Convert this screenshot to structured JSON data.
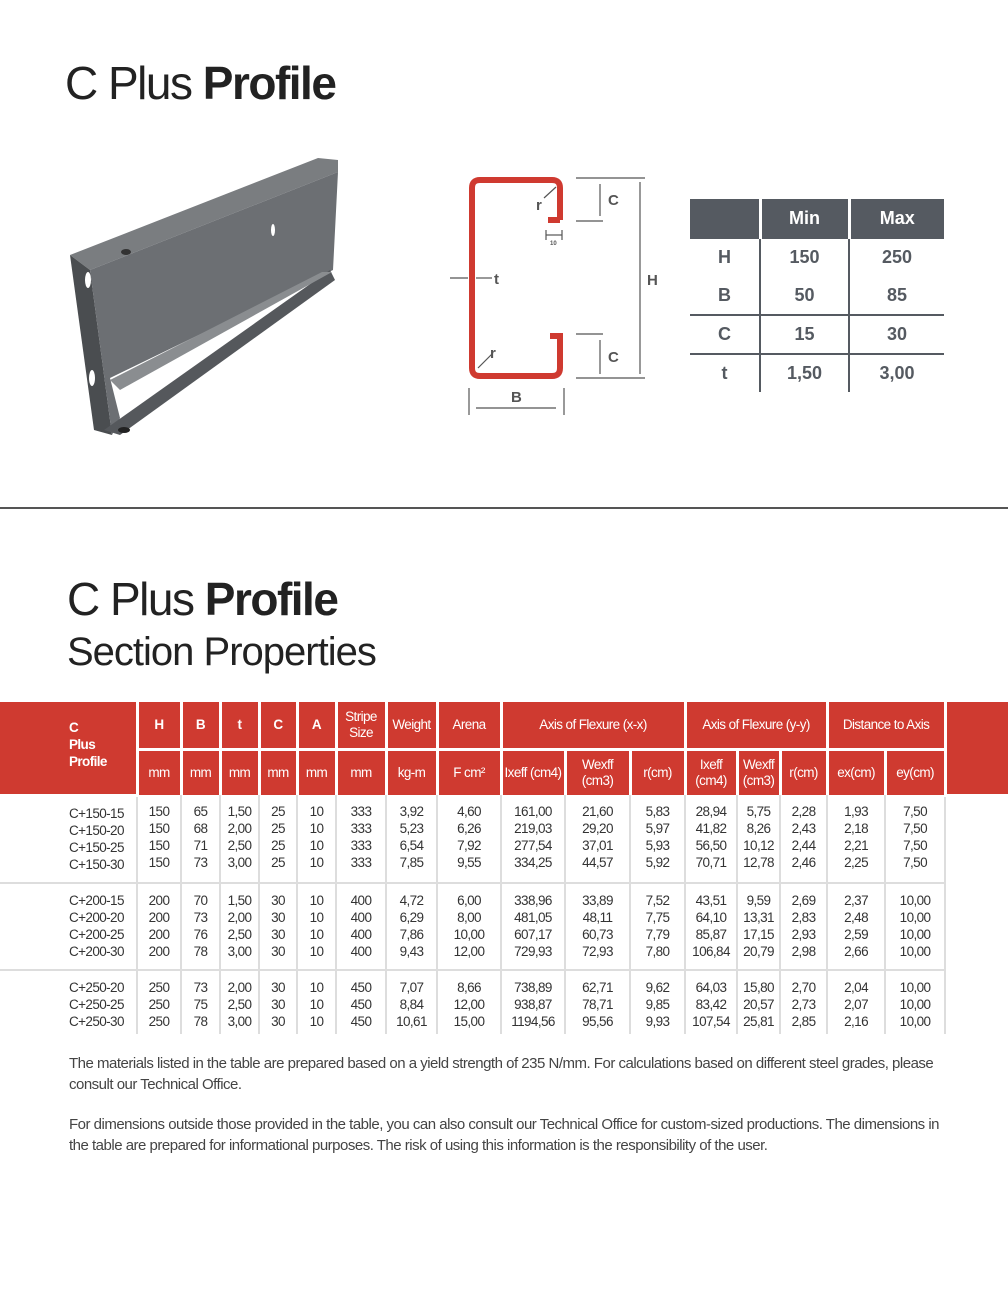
{
  "top": {
    "title_light": "C Plus",
    "title_bold": "Profile"
  },
  "diagram": {
    "labels": {
      "c_top": "C",
      "c_bottom": "C",
      "r_top": "r",
      "r_bottom": "r",
      "t": "t",
      "h": "H",
      "b": "B",
      "lip": "10"
    },
    "color": "#cf3a30"
  },
  "range_table": {
    "headers": [
      "",
      "Min",
      "Max"
    ],
    "rows": [
      [
        "H",
        "150",
        "250"
      ],
      [
        "B",
        "50",
        "85"
      ],
      [
        "C",
        "15",
        "30"
      ],
      [
        "t",
        "1,50",
        "3,00"
      ]
    ]
  },
  "section": {
    "title_light": "C Plus",
    "title_bold": "Profile",
    "subtitle": "Section Properties"
  },
  "props": {
    "accent": "#cf3a30",
    "head1": {
      "profile": [
        "C",
        "Plus",
        "Profile"
      ],
      "H": "H",
      "B": "B",
      "t": "t",
      "C": "C",
      "A": "A",
      "stripe": "Stripe Size",
      "weight": "Weight",
      "arena": "Arena",
      "xx": "Axis of Flexure (x-x)",
      "yy": "Axis of Flexure (y-y)",
      "dist": "Distance to Axis"
    },
    "head2": [
      "mm",
      "mm",
      "mm",
      "mm",
      "mm",
      "mm",
      "kg-m",
      "F cm²",
      "Ixeff (cm4)",
      "Wexff (cm3)",
      "r(cm)",
      "Ixeff (cm4)",
      "Wexff (cm3)",
      "r(cm)",
      "ex(cm)",
      "ey(cm)"
    ],
    "groups": [
      [
        [
          "C+150-15",
          "150",
          "65",
          "1,50",
          "25",
          "10",
          "333",
          "3,92",
          "4,60",
          "161,00",
          "21,60",
          "5,83",
          "28,94",
          "5,75",
          "2,28",
          "1,93",
          "7,50"
        ],
        [
          "C+150-20",
          "150",
          "68",
          "2,00",
          "25",
          "10",
          "333",
          "5,23",
          "6,26",
          "219,03",
          "29,20",
          "5,97",
          "41,82",
          "8,26",
          "2,43",
          "2,18",
          "7,50"
        ],
        [
          "C+150-25",
          "150",
          "71",
          "2,50",
          "25",
          "10",
          "333",
          "6,54",
          "7,92",
          "277,54",
          "37,01",
          "5,93",
          "56,50",
          "10,12",
          "2,44",
          "2,21",
          "7,50"
        ],
        [
          "C+150-30",
          "150",
          "73",
          "3,00",
          "25",
          "10",
          "333",
          "7,85",
          "9,55",
          "334,25",
          "44,57",
          "5,92",
          "70,71",
          "12,78",
          "2,46",
          "2,25",
          "7,50"
        ]
      ],
      [
        [
          "C+200-15",
          "200",
          "70",
          "1,50",
          "30",
          "10",
          "400",
          "4,72",
          "6,00",
          "338,96",
          "33,89",
          "7,52",
          "43,51",
          "9,59",
          "2,69",
          "2,37",
          "10,00"
        ],
        [
          "C+200-20",
          "200",
          "73",
          "2,00",
          "30",
          "10",
          "400",
          "6,29",
          "8,00",
          "481,05",
          "48,11",
          "7,75",
          "64,10",
          "13,31",
          "2,83",
          "2,48",
          "10,00"
        ],
        [
          "C+200-25",
          "200",
          "76",
          "2,50",
          "30",
          "10",
          "400",
          "7,86",
          "10,00",
          "607,17",
          "60,73",
          "7,79",
          "85,87",
          "17,15",
          "2,93",
          "2,59",
          "10,00"
        ],
        [
          "C+200-30",
          "200",
          "78",
          "3,00",
          "30",
          "10",
          "400",
          "9,43",
          "12,00",
          "729,93",
          "72,93",
          "7,80",
          "106,84",
          "20,79",
          "2,98",
          "2,66",
          "10,00"
        ]
      ],
      [
        [
          "C+250-20",
          "250",
          "73",
          "2,00",
          "30",
          "10",
          "450",
          "7,07",
          "8,66",
          "738,89",
          "62,71",
          "9,62",
          "64,03",
          "15,80",
          "2,70",
          "2,04",
          "10,00"
        ],
        [
          "C+250-25",
          "250",
          "75",
          "2,50",
          "30",
          "10",
          "450",
          "8,84",
          "12,00",
          "938,87",
          "78,71",
          "9,85",
          "83,42",
          "20,57",
          "2,73",
          "2,07",
          "10,00"
        ],
        [
          "C+250-30",
          "250",
          "78",
          "3,00",
          "30",
          "10",
          "450",
          "10,61",
          "15,00",
          "1194,56",
          "95,56",
          "9,93",
          "107,54",
          "25,81",
          "2,85",
          "2,16",
          "10,00"
        ]
      ]
    ]
  },
  "notes": [
    "The materials listed in the table are prepared based on a yield strength of 235 N/mm. For calculations based on different steel grades, please consult our Technical Office.",
    "For dimensions outside those provided in the table, you can also consult our Technical Office for custom-sized productions. The dimensions in the table are prepared for informational purposes. The risk of using this information is the responsibility of the user."
  ]
}
